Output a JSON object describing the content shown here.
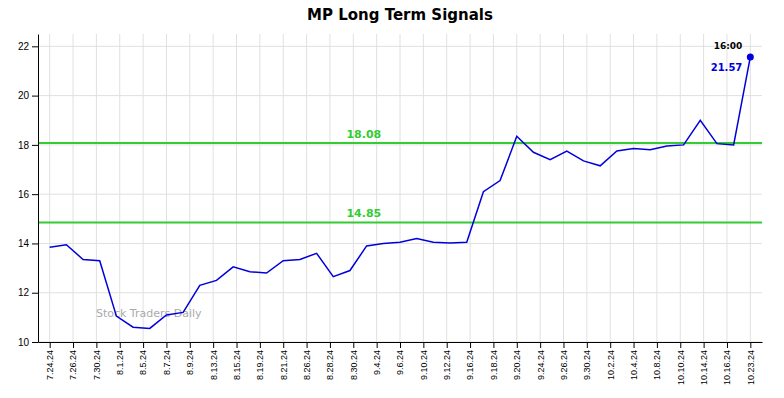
{
  "chart_data": {
    "type": "line",
    "title": "MP Long Term Signals",
    "x": [
      0,
      0.7142857142857143,
      1.4285714285714286,
      2.142857142857143,
      2.857142857142857,
      3.5714285714285716,
      4.285714285714286,
      5,
      5.714285714285714,
      6.428571428571429,
      7.142857142857143,
      7.857142857142857,
      8.571428571428571,
      9.285714285714286,
      10,
      10.714285714285714,
      11.428571428571429,
      12.142857142857142,
      12.857142857142858,
      13.571428571428571,
      14.285714285714286,
      15,
      15.714285714285714,
      16.428571428571427,
      17.142857142857142,
      17.857142857142858,
      18.571428571428573,
      19.285714285714285,
      20,
      20.714285714285715,
      21.428571428571427,
      22.142857142857142,
      22.857142857142858,
      23.571428571428573,
      24.285714285714285,
      25,
      25.714285714285715,
      26.428571428571427,
      27.142857142857142,
      27.857142857142858,
      28.571428571428573,
      29.285714285714285,
      30
    ],
    "values": [
      13.85,
      13.95,
      13.35,
      13.3,
      11.05,
      10.6,
      10.55,
      11.1,
      11.2,
      12.3,
      12.5,
      13.05,
      12.85,
      12.8,
      13.3,
      13.35,
      13.6,
      12.65,
      12.9,
      13.9,
      14.0,
      14.05,
      14.2,
      14.05,
      14.02,
      14.05,
      16.1,
      16.55,
      18.35,
      17.7,
      17.4,
      17.75,
      17.35,
      17.15,
      17.75,
      17.85,
      17.8,
      17.95,
      18.0,
      19.0,
      18.05,
      18.0,
      21.57
    ],
    "color": "#0000dd",
    "xlim": [
      -0.5,
      30.5
    ],
    "xticks": [
      {
        "value": 0,
        "label": "7.24.24"
      },
      {
        "value": 1,
        "label": "7.26.24"
      },
      {
        "value": 2,
        "label": "7.30.24"
      },
      {
        "value": 3,
        "label": "8.1.24"
      },
      {
        "value": 4,
        "label": "8.5.24"
      },
      {
        "value": 5,
        "label": "8.7.24"
      },
      {
        "value": 6,
        "label": "8.9.24"
      },
      {
        "value": 7,
        "label": "8.13.24"
      },
      {
        "value": 8,
        "label": "8.15.24"
      },
      {
        "value": 9,
        "label": "8.19.24"
      },
      {
        "value": 10,
        "label": "8.21.24"
      },
      {
        "value": 11,
        "label": "8.26.24"
      },
      {
        "value": 12,
        "label": "8.28.24"
      },
      {
        "value": 13,
        "label": "8.30.24"
      },
      {
        "value": 14,
        "label": "9.4.24"
      },
      {
        "value": 15,
        "label": "9.6.24"
      },
      {
        "value": 16,
        "label": "9.10.24"
      },
      {
        "value": 17,
        "label": "9.12.24"
      },
      {
        "value": 18,
        "label": "9.16.24"
      },
      {
        "value": 19,
        "label": "9.18.24"
      },
      {
        "value": 20,
        "label": "9.20.24"
      },
      {
        "value": 21,
        "label": "9.24.24"
      },
      {
        "value": 22,
        "label": "9.26.24"
      },
      {
        "value": 23,
        "label": "9.30.24"
      },
      {
        "value": 24,
        "label": "10.2.24"
      },
      {
        "value": 25,
        "label": "10.4.24"
      },
      {
        "value": 26,
        "label": "10.8.24"
      },
      {
        "value": 27,
        "label": "10.10.24"
      },
      {
        "value": 28,
        "label": "10.14.24"
      },
      {
        "value": 29,
        "label": "10.16.24"
      },
      {
        "value": 30,
        "label": "10.23.24"
      }
    ],
    "ylim": [
      10,
      22.5
    ],
    "yticks": [
      10,
      12,
      14,
      16,
      18,
      20,
      22
    ],
    "grid": true,
    "reference_lines": [
      {
        "value": 18.08,
        "label": "18.08",
        "color": "#33cc33"
      },
      {
        "value": 14.85,
        "label": "14.85",
        "color": "#33cc33"
      }
    ],
    "last_point": {
      "value": 21.57,
      "label": "21.57",
      "time_label": "16:00"
    },
    "watermark": "Stock Traders Daily"
  }
}
